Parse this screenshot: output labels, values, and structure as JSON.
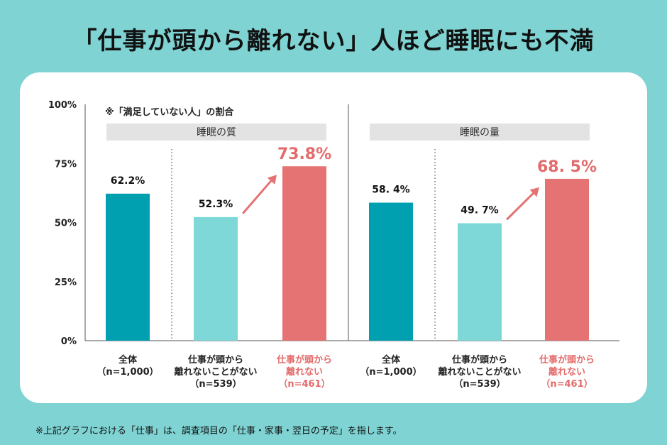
{
  "title": "「仕事が頭から離れない」人ほど睡眠にも不満",
  "note": "※「満足していない人」の割合",
  "footnote": "※上記グラフにおける「仕事」は、調査項目の「仕事・家事・翌日の予定」を指します。",
  "colors": {
    "background": "#7fd3d3",
    "overall": "#00a0b0",
    "group_a": "#7fd8d8",
    "group_b": "#e57373",
    "panel_header": "#e3e3e3",
    "highlight_text": "#e36b6b"
  },
  "chart_data": [
    {
      "type": "bar",
      "title": "睡眠の質",
      "ylim": [
        0,
        100
      ],
      "yticks": [
        "0%",
        "25%",
        "50%",
        "75%",
        "100%"
      ],
      "categories": [
        {
          "lines": [
            "全体",
            "（n=1,000）"
          ],
          "highlight": false
        },
        {
          "lines": [
            "仕事が頭から",
            "離れないことがない",
            "（n=539）"
          ],
          "highlight": false
        },
        {
          "lines": [
            "仕事が頭から",
            "離れない",
            "（n=461）"
          ],
          "highlight": true
        }
      ],
      "values": [
        62.2,
        52.3,
        73.8
      ],
      "value_labels": [
        "62.2%",
        "52.3%",
        "73.8%"
      ]
    },
    {
      "type": "bar",
      "title": "睡眠の量",
      "ylim": [
        0,
        100
      ],
      "categories": [
        {
          "lines": [
            "全体",
            "（n=1,000）"
          ],
          "highlight": false
        },
        {
          "lines": [
            "仕事が頭から",
            "離れないことがない",
            "（n=539）"
          ],
          "highlight": false
        },
        {
          "lines": [
            "仕事が頭から",
            "離れない",
            "（n=461）"
          ],
          "highlight": true
        }
      ],
      "values": [
        58.4,
        49.7,
        68.5
      ],
      "value_labels": [
        "58. 4%",
        "49. 7%",
        "68. 5%"
      ]
    }
  ]
}
